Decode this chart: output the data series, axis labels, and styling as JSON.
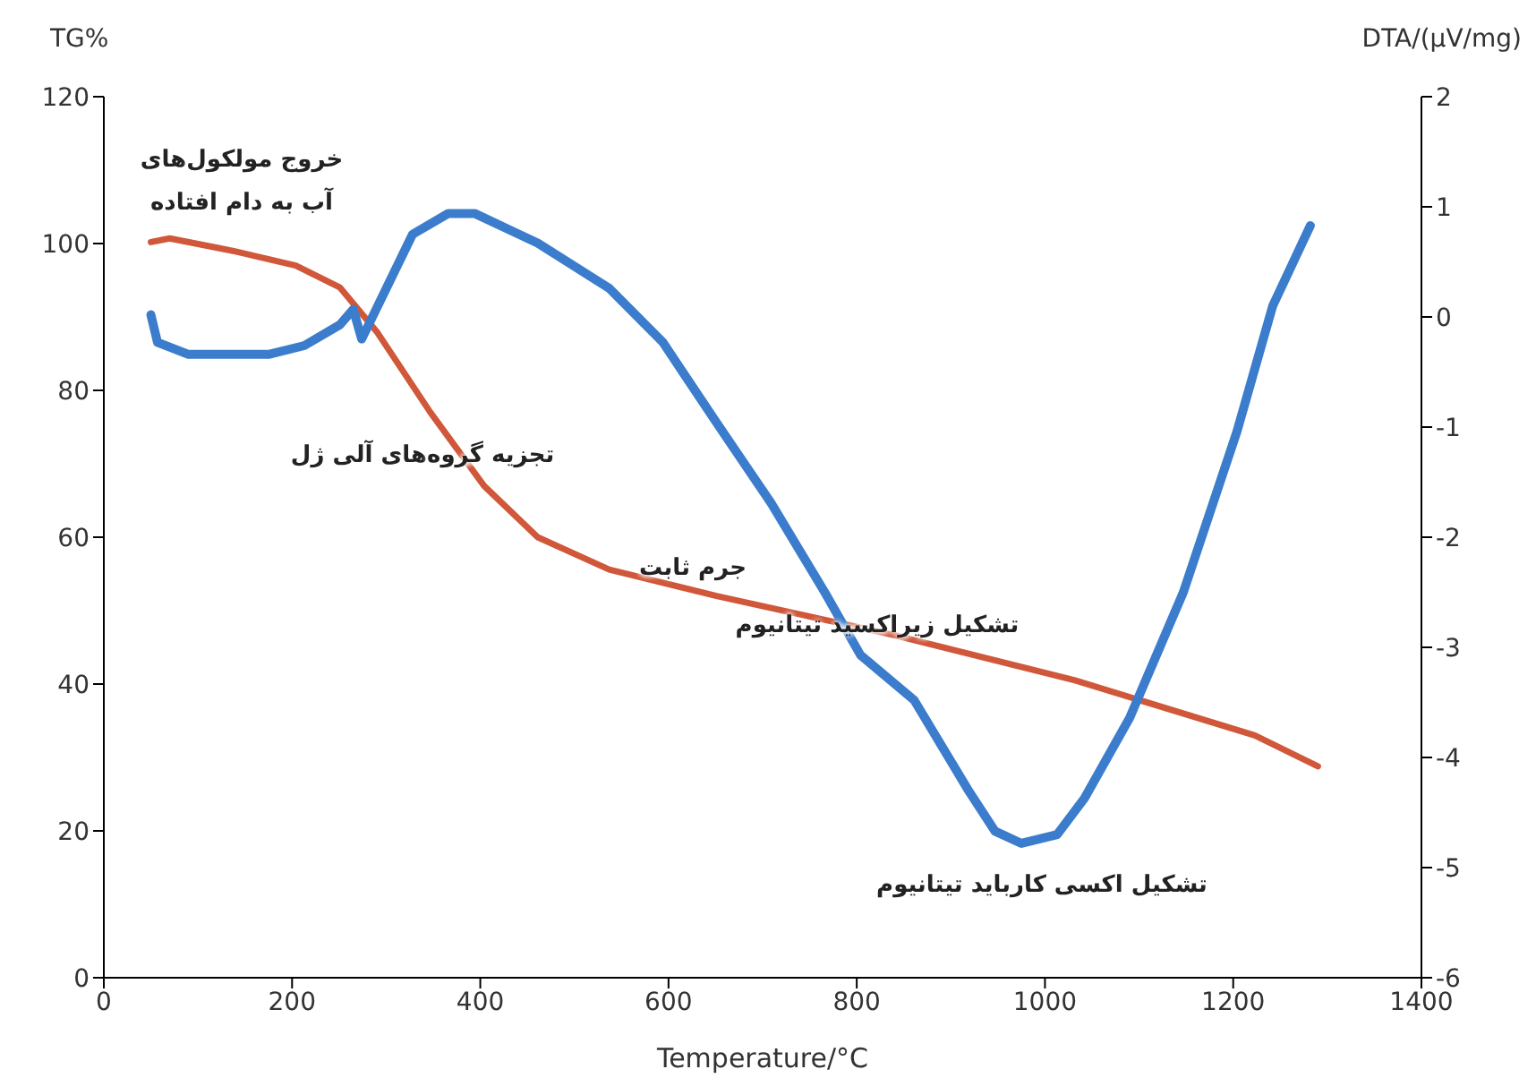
{
  "chart_data": {
    "type": "line",
    "xlabel": "Temperature/°C",
    "ylabel": "TG%",
    "y2label": "DTA/(μV/mg)",
    "xlim": [
      0,
      1400
    ],
    "xticks": [
      0,
      200,
      400,
      600,
      800,
      1000,
      1200,
      1400
    ],
    "ylim": [
      0,
      120
    ],
    "yticks": [
      0,
      20,
      40,
      60,
      80,
      100,
      120
    ],
    "y2lim": [
      -6,
      2
    ],
    "y2ticks": [
      -6,
      -5,
      -4,
      -3,
      -2,
      -1,
      0,
      1,
      2
    ],
    "grid": false,
    "legend": false,
    "marker": "none",
    "line_style": "solid",
    "series": [
      {
        "color": "#d0573a",
        "x": [
          50,
          70,
          137,
          204,
          251,
          290,
          347,
          404,
          461,
          537,
          651,
          842,
          1032,
          1223,
          1290
        ],
        "values": [
          100.2,
          100.7,
          99,
          97,
          94,
          88,
          77,
          67,
          60,
          55.6,
          52,
          46.6,
          40.5,
          33,
          28.8
        ]
      },
      {
        "color": "#3b7dcc",
        "axis": "y2",
        "x": [
          50,
          57,
          90,
          175,
          213,
          251,
          265,
          274,
          328,
          366,
          394,
          461,
          537,
          594,
          651,
          709,
          766,
          804,
          861,
          918,
          947,
          975,
          1013,
          1042,
          1090,
          1147,
          1204,
          1242,
          1282
        ],
        "values": [
          0.02,
          -0.23,
          -0.34,
          -0.34,
          -0.26,
          -0.07,
          0.07,
          -0.2,
          0.75,
          0.94,
          0.94,
          0.67,
          0.26,
          -0.23,
          -0.96,
          -1.69,
          -2.5,
          -3.07,
          -3.48,
          -4.29,
          -4.67,
          -4.78,
          -4.7,
          -4.37,
          -3.64,
          -2.5,
          -1.04,
          0.1,
          0.83
        ]
      }
    ],
    "annotations": [
      "خروج مولکول‌های\nآب به دام افتاده",
      "تجزیه گروه‌های آلی ژل",
      "جرم ثابت",
      "تشکیل زیراکسید تیتانیوم",
      "تشکیل اکسی کارباید تیتانیوم"
    ]
  }
}
